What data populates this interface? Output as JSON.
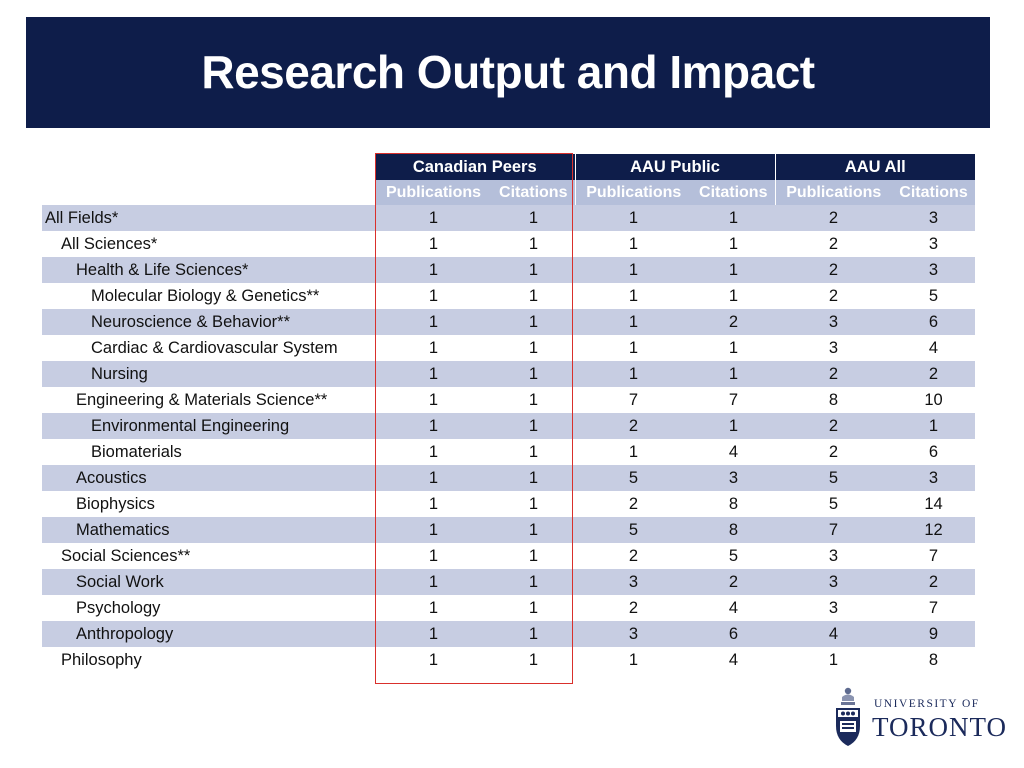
{
  "slide": {
    "title": "Research Output and Impact"
  },
  "table": {
    "groups": [
      "Canadian Peers",
      "AAU Public",
      "AAU All"
    ],
    "subheaders": [
      "Publications",
      "Citations",
      "Publications",
      "Citations",
      "Publications",
      "Citations"
    ],
    "rows": [
      {
        "label": "All Fields*",
        "level": 0,
        "values": [
          "1",
          "1",
          "1",
          "1",
          "2",
          "3"
        ]
      },
      {
        "label": "All Sciences*",
        "level": 1,
        "values": [
          "1",
          "1",
          "1",
          "1",
          "2",
          "3"
        ]
      },
      {
        "label": "Health & Life Sciences*",
        "level": 2,
        "values": [
          "1",
          "1",
          "1",
          "1",
          "2",
          "3"
        ]
      },
      {
        "label": "Molecular Biology & Genetics**",
        "level": 3,
        "values": [
          "1",
          "1",
          "1",
          "1",
          "2",
          "5"
        ]
      },
      {
        "label": "Neuroscience & Behavior**",
        "level": 3,
        "values": [
          "1",
          "1",
          "1",
          "2",
          "3",
          "6"
        ]
      },
      {
        "label": "Cardiac & Cardiovascular System",
        "level": 3,
        "values": [
          "1",
          "1",
          "1",
          "1",
          "3",
          "4"
        ]
      },
      {
        "label": "Nursing",
        "level": 3,
        "values": [
          "1",
          "1",
          "1",
          "1",
          "2",
          "2"
        ]
      },
      {
        "label": "Engineering & Materials Science**",
        "level": 2,
        "values": [
          "1",
          "1",
          "7",
          "7",
          "8",
          "10"
        ]
      },
      {
        "label": "Environmental Engineering",
        "level": 3,
        "values": [
          "1",
          "1",
          "2",
          "1",
          "2",
          "1"
        ]
      },
      {
        "label": "Biomaterials",
        "level": 3,
        "values": [
          "1",
          "1",
          "1",
          "4",
          "2",
          "6"
        ]
      },
      {
        "label": "Acoustics",
        "level": 2,
        "values": [
          "1",
          "1",
          "5",
          "3",
          "5",
          "3"
        ]
      },
      {
        "label": "Biophysics",
        "level": 2,
        "values": [
          "1",
          "1",
          "2",
          "8",
          "5",
          "14"
        ]
      },
      {
        "label": "Mathematics",
        "level": 2,
        "values": [
          "1",
          "1",
          "5",
          "8",
          "7",
          "12"
        ]
      },
      {
        "label": "Social Sciences**",
        "level": 1,
        "values": [
          "1",
          "1",
          "2",
          "5",
          "3",
          "7"
        ]
      },
      {
        "label": "Social Work",
        "level": 2,
        "values": [
          "1",
          "1",
          "3",
          "2",
          "3",
          "2"
        ]
      },
      {
        "label": "Psychology",
        "level": 2,
        "values": [
          "1",
          "1",
          "2",
          "4",
          "3",
          "7"
        ]
      },
      {
        "label": "Anthropology",
        "level": 2,
        "values": [
          "1",
          "1",
          "3",
          "6",
          "4",
          "9"
        ]
      },
      {
        "label": "Philosophy",
        "level": 1,
        "values": [
          "1",
          "1",
          "1",
          "4",
          "1",
          "8"
        ]
      }
    ]
  },
  "highlight": {
    "group": "Canadian Peers",
    "color": "#d9302c"
  },
  "logo": {
    "line1": "UNIVERSITY OF",
    "line2": "TORONTO",
    "icon": "university-crest-icon"
  },
  "colors": {
    "header_dark": "#0e1d4a",
    "header_light": "#b5bfda",
    "row_shade": "#c7cde2"
  }
}
